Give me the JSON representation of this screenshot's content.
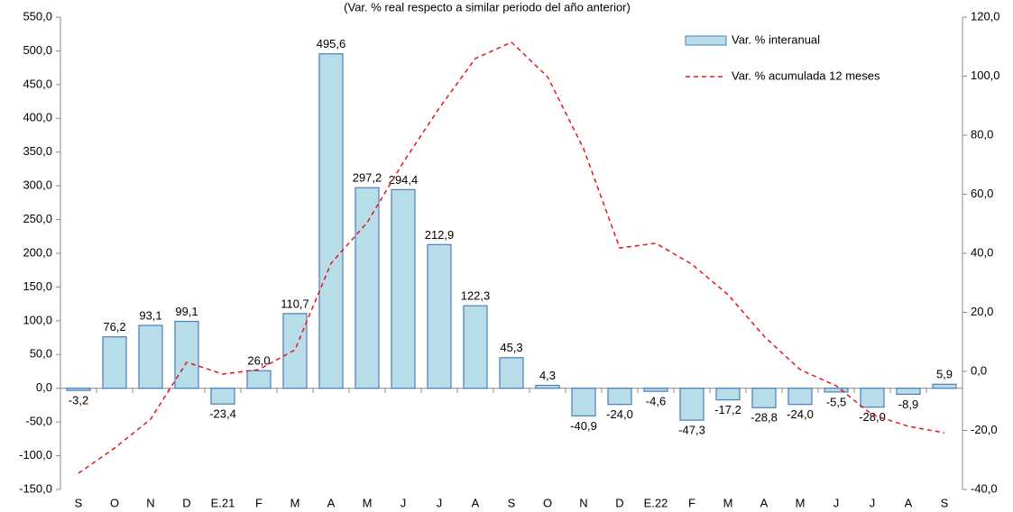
{
  "chart_data": {
    "type": "bar",
    "subtitle": "(Var. % real respecto a similar periodo del año anterior)",
    "categories": [
      "S",
      "O",
      "N",
      "D",
      "E.21",
      "F",
      "M",
      "A",
      "M",
      "J",
      "J",
      "A",
      "S",
      "O",
      "N",
      "D",
      "E.22",
      "F",
      "M",
      "A",
      "M",
      "J",
      "J",
      "A",
      "S"
    ],
    "series": [
      {
        "name": "Var. % interanual",
        "type": "bar",
        "color": "#b7dde8",
        "edge_color": "#4a7ebb",
        "values": [
          -3.2,
          76.2,
          93.1,
          99.1,
          -23.4,
          26.0,
          110.7,
          495.6,
          297.2,
          294.4,
          212.9,
          122.3,
          45.3,
          4.3,
          -40.9,
          -24.0,
          -4.6,
          -47.3,
          -17.2,
          -28.8,
          -24.0,
          -5.5,
          -28.0,
          -8.9,
          5.9
        ],
        "value_labels": [
          "-3,2",
          "76,2",
          "93,1",
          "99,1",
          "-23,4",
          "26,0",
          "110,7",
          "495,6",
          "297,2",
          "294,4",
          "212,9",
          "122,3",
          "45,3",
          "4,3",
          "-40,9",
          "-24,0",
          "-4,6",
          "-47,3",
          "-17,2",
          "-28,8",
          "-24,0",
          "-5,5",
          "-28,0",
          "-8,9",
          "5,9"
        ]
      },
      {
        "name": "Var. % acumulada 12 meses",
        "type": "line",
        "axis": "y2",
        "color": "#e8141b",
        "dashed": true,
        "values": [
          -34.5,
          -26,
          -16.2,
          3.1,
          -0.9,
          0.6,
          7.3,
          36.6,
          50.4,
          70.8,
          89.2,
          106,
          111.5,
          99.8,
          75.4,
          41.8,
          43.4,
          36.3,
          26,
          11.9,
          0.6,
          -4.9,
          -14.7,
          -18.6,
          -20.8
        ]
      }
    ],
    "ylim": [
      -150,
      550
    ],
    "yticks": [
      {
        "value": -150,
        "label": "-150,0"
      },
      {
        "value": -100,
        "label": "-100,0"
      },
      {
        "value": -50,
        "label": "-50,0"
      },
      {
        "value": 0,
        "label": "0,0"
      },
      {
        "value": 50,
        "label": "50,0"
      },
      {
        "value": 100,
        "label": "100,0"
      },
      {
        "value": 150,
        "label": "150,0"
      },
      {
        "value": 200,
        "label": "200,0"
      },
      {
        "value": 250,
        "label": "250,0"
      },
      {
        "value": 300,
        "label": "300,0"
      },
      {
        "value": 350,
        "label": "350,0"
      },
      {
        "value": 400,
        "label": "400,0"
      },
      {
        "value": 450,
        "label": "450,0"
      },
      {
        "value": 500,
        "label": "500,0"
      },
      {
        "value": 550,
        "label": "550,0"
      }
    ],
    "y2lim": [
      -40,
      120
    ],
    "y2ticks": [
      {
        "value": -40,
        "label": "-40,0"
      },
      {
        "value": -20,
        "label": "-20,0"
      },
      {
        "value": 0,
        "label": "0,0"
      },
      {
        "value": 20,
        "label": "20,0"
      },
      {
        "value": 40,
        "label": "40,0"
      },
      {
        "value": 60,
        "label": "60,0"
      },
      {
        "value": 80,
        "label": "80,0"
      },
      {
        "value": 100,
        "label": "100,0"
      },
      {
        "value": 120,
        "label": "120,0"
      }
    ],
    "legend": "upper right"
  }
}
